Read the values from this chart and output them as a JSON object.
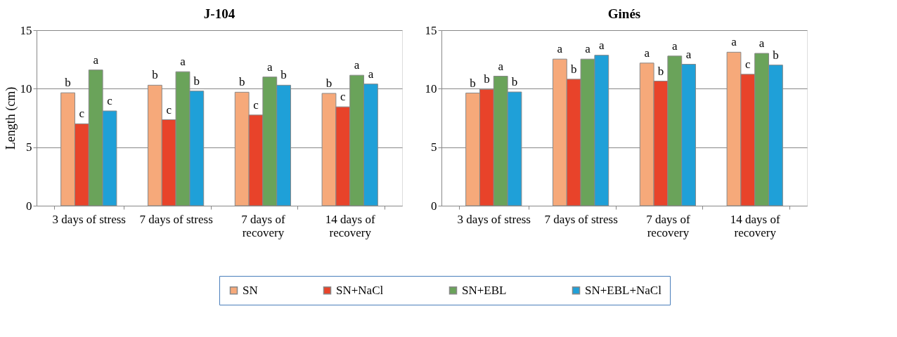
{
  "chart_data": [
    {
      "type": "bar",
      "title": "J-104",
      "ylabel": "Length (cm)",
      "categories": [
        "3 days of stress",
        "7 days of stress",
        "7 days of recovery",
        "14 days of recovery"
      ],
      "ylim": [
        0,
        15
      ],
      "yticks": [
        0,
        5,
        10,
        15
      ],
      "grid": "y",
      "legend": "bottom",
      "series": [
        {
          "name": "SN",
          "color": "#f6a97a",
          "values": [
            9.65,
            10.3,
            9.7,
            9.6
          ],
          "value_labels": [
            "b",
            "b",
            "b",
            "b"
          ]
        },
        {
          "name": "SN+NaCl",
          "color": "#e8432a",
          "values": [
            7.0,
            7.35,
            7.75,
            8.45
          ],
          "value_labels": [
            "c",
            "c",
            "c",
            "c"
          ]
        },
        {
          "name": "SN+EBL",
          "color": "#6aa35a",
          "values": [
            11.6,
            11.45,
            11.0,
            11.15
          ],
          "value_labels": [
            "a",
            "a",
            "a",
            "a"
          ]
        },
        {
          "name": "SN+EBL+NaCl",
          "color": "#1fa0d8",
          "values": [
            8.1,
            9.8,
            10.3,
            10.4
          ],
          "value_labels": [
            "c",
            "b",
            "b",
            "a"
          ]
        }
      ]
    },
    {
      "type": "bar",
      "title": "Ginés",
      "categories": [
        "3 days of stress",
        "7 days of stress",
        "7 days of recovery",
        "14 days of recovery"
      ],
      "ylim": [
        0,
        15
      ],
      "yticks": [
        0,
        5,
        10,
        15
      ],
      "grid": "y",
      "legend": "bottom",
      "series": [
        {
          "name": "SN",
          "color": "#f6a97a",
          "values": [
            9.63,
            12.53,
            12.19,
            13.12
          ],
          "value_labels": [
            "b",
            "a",
            "a",
            "a"
          ]
        },
        {
          "name": "SN+NaCl",
          "color": "#e8432a",
          "values": [
            9.95,
            10.81,
            10.65,
            11.23
          ],
          "value_labels": [
            "b",
            "b",
            "b",
            "c"
          ]
        },
        {
          "name": "SN+EBL",
          "color": "#6aa35a",
          "values": [
            11.07,
            12.53,
            12.79,
            13.02
          ],
          "value_labels": [
            "a",
            "a",
            "a",
            "a"
          ]
        },
        {
          "name": "SN+EBL+NaCl",
          "color": "#1fa0d8",
          "values": [
            9.72,
            12.86,
            12.09,
            12.02
          ],
          "value_labels": [
            "b",
            "a",
            "a",
            "b"
          ]
        }
      ]
    }
  ]
}
